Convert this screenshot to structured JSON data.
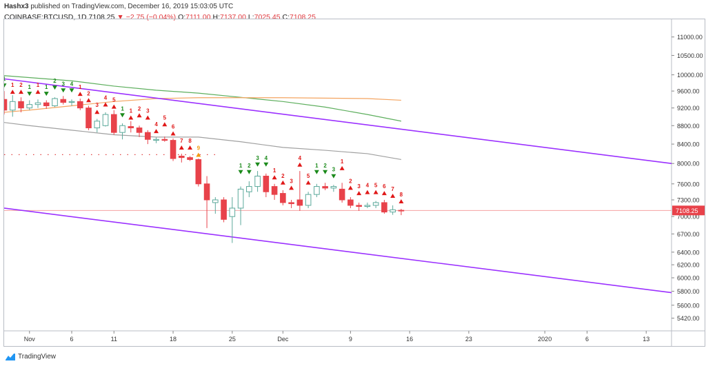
{
  "header": {
    "author": "Hashx3",
    "published_text": "published on TradingView.com, December 16, 2019 15:03:05 UTC",
    "symbol": "COINBASE:BTCUSD, 1D",
    "last": "7108.25",
    "change": "−2.75 (−0.04%)",
    "open_label": "O:",
    "open": "7111.00",
    "high_label": "H:",
    "high": "7137.00",
    "low_label": "L:",
    "low": "7025.45",
    "close_label": "C:",
    "close": "7108.25"
  },
  "footer": {
    "brand": "TradingView"
  },
  "colors": {
    "up": "#5aa89a",
    "down": "#e8424a",
    "green_signal": "#1b8a1b",
    "red_signal": "#e01818",
    "channel": "#9b30ff",
    "ma_green": "#5cae5c",
    "ma_orange": "#f4a460",
    "ma_gray": "#a0a0a0",
    "price_line": "#f4a0a0",
    "price_label_bg": "#e8424a"
  },
  "chart_data": {
    "type": "candlestick",
    "y_ticks": [
      11000,
      10500,
      10000,
      9600,
      9200,
      8800,
      8400,
      8000,
      7600,
      7300,
      7000,
      6700,
      6400,
      6200,
      6000,
      5800,
      5600,
      5420
    ],
    "y_tick_labels": [
      "11000.00",
      "10500.00",
      "10000.00",
      "9600.00",
      "9200.00",
      "8800.00",
      "8400.00",
      "8000.00",
      "7600.00",
      "7300.00",
      "7000.00",
      "6700.00",
      "6400.00",
      "6200.00",
      "6000.00",
      "5800.00",
      "5600.00",
      "5420.00"
    ],
    "y_scale": "log",
    "ylim": [
      5250,
      11500
    ],
    "x_ticks": [
      {
        "day": 0,
        "label": "Nov"
      },
      {
        "day": 5,
        "label": "6"
      },
      {
        "day": 10,
        "label": "11"
      },
      {
        "day": 17,
        "label": "18"
      },
      {
        "day": 24,
        "label": "25"
      },
      {
        "day": 30,
        "label": "Dec"
      },
      {
        "day": 38,
        "label": "9"
      },
      {
        "day": 45,
        "label": "16"
      },
      {
        "day": 52,
        "label": "23"
      },
      {
        "day": 61,
        "label": "2020"
      },
      {
        "day": 66,
        "label": "6"
      },
      {
        "day": 73,
        "label": "13"
      }
    ],
    "xlim": [
      -3,
      76
    ],
    "current_price": 7108.25,
    "current_price_label": "7108.25",
    "candles": [
      {
        "d": -3,
        "o": 9400,
        "h": 9600,
        "l": 9050,
        "c": 9150
      },
      {
        "d": -2,
        "o": 9150,
        "h": 9500,
        "l": 9000,
        "c": 9350
      },
      {
        "d": -1,
        "o": 9350,
        "h": 9450,
        "l": 9100,
        "c": 9200
      },
      {
        "d": 0,
        "o": 9200,
        "h": 9380,
        "l": 9150,
        "c": 9280
      },
      {
        "d": 1,
        "o": 9280,
        "h": 9400,
        "l": 9200,
        "c": 9320
      },
      {
        "d": 2,
        "o": 9320,
        "h": 9380,
        "l": 9180,
        "c": 9250
      },
      {
        "d": 3,
        "o": 9250,
        "h": 9450,
        "l": 9220,
        "c": 9420
      },
      {
        "d": 4,
        "o": 9400,
        "h": 9480,
        "l": 9280,
        "c": 9330
      },
      {
        "d": 5,
        "o": 9330,
        "h": 9400,
        "l": 9250,
        "c": 9350
      },
      {
        "d": 6,
        "o": 9350,
        "h": 9420,
        "l": 9150,
        "c": 9200
      },
      {
        "d": 7,
        "o": 9200,
        "h": 9250,
        "l": 8700,
        "c": 8750
      },
      {
        "d": 8,
        "o": 8750,
        "h": 8950,
        "l": 8650,
        "c": 8900
      },
      {
        "d": 9,
        "o": 8800,
        "h": 9100,
        "l": 8780,
        "c": 9050
      },
      {
        "d": 10,
        "o": 9050,
        "h": 9150,
        "l": 8600,
        "c": 8650
      },
      {
        "d": 11,
        "o": 8650,
        "h": 8850,
        "l": 8500,
        "c": 8800
      },
      {
        "d": 12,
        "o": 8780,
        "h": 8900,
        "l": 8650,
        "c": 8750
      },
      {
        "d": 13,
        "o": 8750,
        "h": 8800,
        "l": 8550,
        "c": 8650
      },
      {
        "d": 14,
        "o": 8650,
        "h": 8700,
        "l": 8400,
        "c": 8500
      },
      {
        "d": 15,
        "o": 8480,
        "h": 8540,
        "l": 8420,
        "c": 8500
      },
      {
        "d": 16,
        "o": 8500,
        "h": 8560,
        "l": 8450,
        "c": 8480
      },
      {
        "d": 17,
        "o": 8480,
        "h": 8520,
        "l": 8050,
        "c": 8100
      },
      {
        "d": 18,
        "o": 8150,
        "h": 8200,
        "l": 8020,
        "c": 8120
      },
      {
        "d": 19,
        "o": 8120,
        "h": 8150,
        "l": 8050,
        "c": 8080
      },
      {
        "d": 20,
        "o": 8080,
        "h": 8100,
        "l": 7550,
        "c": 7600
      },
      {
        "d": 21,
        "o": 7600,
        "h": 7750,
        "l": 6800,
        "c": 7300
      },
      {
        "d": 22,
        "o": 7250,
        "h": 7350,
        "l": 7050,
        "c": 7300
      },
      {
        "d": 23,
        "o": 7300,
        "h": 7350,
        "l": 6900,
        "c": 6950
      },
      {
        "d": 24,
        "o": 7000,
        "h": 7350,
        "l": 6550,
        "c": 7150
      },
      {
        "d": 25,
        "o": 7150,
        "h": 7550,
        "l": 6850,
        "c": 7500
      },
      {
        "d": 26,
        "o": 7450,
        "h": 7650,
        "l": 7350,
        "c": 7550
      },
      {
        "d": 27,
        "o": 7550,
        "h": 7850,
        "l": 7450,
        "c": 7750
      },
      {
        "d": 28,
        "o": 7750,
        "h": 7800,
        "l": 7350,
        "c": 7450
      },
      {
        "d": 29,
        "o": 7550,
        "h": 7600,
        "l": 7300,
        "c": 7400
      },
      {
        "d": 30,
        "o": 7420,
        "h": 7480,
        "l": 7200,
        "c": 7250
      },
      {
        "d": 31,
        "o": 7250,
        "h": 7300,
        "l": 7150,
        "c": 7230
      },
      {
        "d": 32,
        "o": 7300,
        "h": 7850,
        "l": 7100,
        "c": 7200
      },
      {
        "d": 33,
        "o": 7200,
        "h": 7450,
        "l": 7150,
        "c": 7400
      },
      {
        "d": 34,
        "o": 7400,
        "h": 7600,
        "l": 7350,
        "c": 7550
      },
      {
        "d": 35,
        "o": 7550,
        "h": 7620,
        "l": 7480,
        "c": 7520
      },
      {
        "d": 36,
        "o": 7520,
        "h": 7580,
        "l": 7450,
        "c": 7550
      },
      {
        "d": 37,
        "o": 7500,
        "h": 7620,
        "l": 7250,
        "c": 7300
      },
      {
        "d": 38,
        "o": 7300,
        "h": 7350,
        "l": 7150,
        "c": 7200
      },
      {
        "d": 39,
        "o": 7200,
        "h": 7250,
        "l": 7100,
        "c": 7180
      },
      {
        "d": 40,
        "o": 7180,
        "h": 7250,
        "l": 7150,
        "c": 7200
      },
      {
        "d": 41,
        "o": 7200,
        "h": 7280,
        "l": 7150,
        "c": 7250
      },
      {
        "d": 42,
        "o": 7250,
        "h": 7300,
        "l": 7050,
        "c": 7080
      },
      {
        "d": 43,
        "o": 7080,
        "h": 7200,
        "l": 7030,
        "c": 7120
      },
      {
        "d": 44,
        "o": 7111,
        "h": 7137,
        "l": 7025,
        "c": 7108
      }
    ],
    "td_signals": [
      {
        "d": -3,
        "n": "1",
        "color": "green",
        "dir": "down",
        "p": 9700
      },
      {
        "d": -2,
        "n": "1",
        "color": "red",
        "dir": "up",
        "p": 9550
      },
      {
        "d": -1,
        "n": "2",
        "color": "red",
        "dir": "up",
        "p": 9550
      },
      {
        "d": 0,
        "n": "1",
        "color": "green",
        "dir": "down",
        "p": 9500
      },
      {
        "d": 1,
        "n": "1",
        "color": "red",
        "dir": "up",
        "p": 9550
      },
      {
        "d": 2,
        "n": "1",
        "color": "green",
        "dir": "down",
        "p": 9500
      },
      {
        "d": 3,
        "n": "2",
        "color": "green",
        "dir": "down",
        "p": 9650
      },
      {
        "d": 4,
        "n": "3",
        "color": "green",
        "dir": "down",
        "p": 9580
      },
      {
        "d": 5,
        "n": "4",
        "color": "green",
        "dir": "down",
        "p": 9580
      },
      {
        "d": 6,
        "n": "1",
        "color": "red",
        "dir": "up",
        "p": 9500
      },
      {
        "d": 7,
        "n": "2",
        "color": "red",
        "dir": "up",
        "p": 9350
      },
      {
        "d": 8,
        "n": "3",
        "color": "red",
        "dir": "up",
        "p": 9080
      },
      {
        "d": 9,
        "n": "4",
        "color": "red",
        "dir": "up",
        "p": 9250
      },
      {
        "d": 10,
        "n": "5",
        "color": "red",
        "dir": "up",
        "p": 9200
      },
      {
        "d": 11,
        "n": "1",
        "color": "green",
        "dir": "down",
        "p": 9000
      },
      {
        "d": 12,
        "n": "1",
        "color": "red",
        "dir": "up",
        "p": 8950
      },
      {
        "d": 13,
        "n": "2",
        "color": "red",
        "dir": "up",
        "p": 9000
      },
      {
        "d": 14,
        "n": "3",
        "color": "red",
        "dir": "up",
        "p": 8950
      },
      {
        "d": 15,
        "n": "4",
        "color": "red",
        "dir": "up",
        "p": 8650
      },
      {
        "d": 16,
        "n": "5",
        "color": "red",
        "dir": "up",
        "p": 8800
      },
      {
        "d": 17,
        "n": "6",
        "color": "red",
        "dir": "up",
        "p": 8600
      },
      {
        "d": 18,
        "n": "7",
        "color": "red",
        "dir": "up",
        "p": 8300
      },
      {
        "d": 19,
        "n": "8",
        "color": "red",
        "dir": "up",
        "p": 8300
      },
      {
        "d": 20,
        "n": "9",
        "color": "orange",
        "dir": "up",
        "p": 8150
      },
      {
        "d": 25,
        "n": "1",
        "color": "green",
        "dir": "down",
        "p": 7800
      },
      {
        "d": 26,
        "n": "2",
        "color": "green",
        "dir": "down",
        "p": 7800
      },
      {
        "d": 27,
        "n": "3",
        "color": "green",
        "dir": "down",
        "p": 7950
      },
      {
        "d": 28,
        "n": "4",
        "color": "green",
        "dir": "down",
        "p": 7950
      },
      {
        "d": 29,
        "n": "1",
        "color": "red",
        "dir": "up",
        "p": 7700
      },
      {
        "d": 30,
        "n": "2",
        "color": "red",
        "dir": "up",
        "p": 7600
      },
      {
        "d": 31,
        "n": "3",
        "color": "red",
        "dir": "up",
        "p": 7500
      },
      {
        "d": 32,
        "n": "4",
        "color": "red",
        "dir": "up",
        "p": 7950
      },
      {
        "d": 33,
        "n": "5",
        "color": "red",
        "dir": "up",
        "p": 7600
      },
      {
        "d": 34,
        "n": "1",
        "color": "green",
        "dir": "down",
        "p": 7800
      },
      {
        "d": 35,
        "n": "2",
        "color": "green",
        "dir": "down",
        "p": 7800
      },
      {
        "d": 36,
        "n": "3",
        "color": "green",
        "dir": "down",
        "p": 7720
      },
      {
        "d": 37,
        "n": "1",
        "color": "red",
        "dir": "up",
        "p": 7880
      },
      {
        "d": 38,
        "n": "2",
        "color": "red",
        "dir": "up",
        "p": 7500
      },
      {
        "d": 39,
        "n": "3",
        "color": "red",
        "dir": "up",
        "p": 7400
      },
      {
        "d": 40,
        "n": "4",
        "color": "red",
        "dir": "up",
        "p": 7420
      },
      {
        "d": 41,
        "n": "5",
        "color": "red",
        "dir": "up",
        "p": 7420
      },
      {
        "d": 42,
        "n": "6",
        "color": "red",
        "dir": "up",
        "p": 7400
      },
      {
        "d": 43,
        "n": "7",
        "color": "red",
        "dir": "up",
        "p": 7350
      },
      {
        "d": 44,
        "n": "8",
        "color": "red",
        "dir": "up",
        "p": 7250
      }
    ],
    "channel_upper": [
      {
        "d": -3,
        "p": 9900
      },
      {
        "d": 76,
        "p": 8000
      }
    ],
    "channel_lower": [
      {
        "d": -3,
        "p": 7150
      },
      {
        "d": 76,
        "p": 5780
      }
    ],
    "ma_green": [
      {
        "d": -3,
        "p": 9980
      },
      {
        "d": 5,
        "p": 9850
      },
      {
        "d": 10,
        "p": 9720
      },
      {
        "d": 15,
        "p": 9620
      },
      {
        "d": 20,
        "p": 9550
      },
      {
        "d": 25,
        "p": 9450
      },
      {
        "d": 30,
        "p": 9350
      },
      {
        "d": 35,
        "p": 9220
      },
      {
        "d": 40,
        "p": 9050
      },
      {
        "d": 44,
        "p": 8900
      }
    ],
    "ma_orange": [
      {
        "d": -3,
        "p": 9100
      },
      {
        "d": 0,
        "p": 9150
      },
      {
        "d": 5,
        "p": 9250
      },
      {
        "d": 10,
        "p": 9350
      },
      {
        "d": 15,
        "p": 9420
      },
      {
        "d": 20,
        "p": 9440
      },
      {
        "d": 25,
        "p": 9440
      },
      {
        "d": 30,
        "p": 9440
      },
      {
        "d": 35,
        "p": 9430
      },
      {
        "d": 40,
        "p": 9420
      },
      {
        "d": 44,
        "p": 9380
      }
    ],
    "ma_gray": [
      {
        "d": -3,
        "p": 8870
      },
      {
        "d": 0,
        "p": 8800
      },
      {
        "d": 5,
        "p": 8700
      },
      {
        "d": 10,
        "p": 8600
      },
      {
        "d": 15,
        "p": 8550
      },
      {
        "d": 20,
        "p": 8550
      },
      {
        "d": 25,
        "p": 8450
      },
      {
        "d": 30,
        "p": 8330
      },
      {
        "d": 35,
        "p": 8270
      },
      {
        "d": 40,
        "p": 8200
      },
      {
        "d": 44,
        "p": 8080
      }
    ],
    "dotted_level": {
      "d_start": -3,
      "d_end": 22,
      "p": 8180
    }
  }
}
